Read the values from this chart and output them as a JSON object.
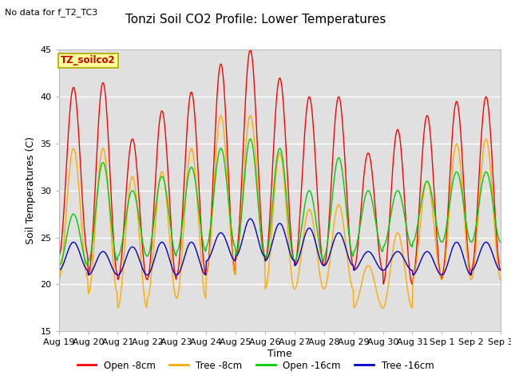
{
  "title": "Tonzi Soil CO2 Profile: Lower Temperatures",
  "subtitle": "No data for f_T2_TC3",
  "dataset_label": "TZ_soilco2",
  "ylabel": "Soil Temperatures (C)",
  "xlabel": "Time",
  "ylim": [
    15,
    45
  ],
  "yticks": [
    15,
    20,
    25,
    30,
    35,
    40,
    45
  ],
  "bg_color": "#e0e0e0",
  "legend_entries": [
    "Open -8cm",
    "Tree -8cm",
    "Open -16cm",
    "Tree -16cm"
  ],
  "line_colors": [
    "#ff0000",
    "#ffaa00",
    "#00cc00",
    "#0000cc"
  ],
  "date_labels": [
    "Aug 19",
    "Aug 20",
    "Aug 21",
    "Aug 22",
    "Aug 23",
    "Aug 24",
    "Aug 25",
    "Aug 26",
    "Aug 27",
    "Aug 28",
    "Aug 29",
    "Aug 30",
    "Aug 31",
    "Sep 1",
    "Sep 2",
    "Sep 3"
  ],
  "open8_peaks": [
    41.0,
    41.5,
    35.5,
    38.5,
    40.5,
    43.5,
    45.0,
    42.0,
    40.0,
    40.0,
    34.0,
    36.5,
    38.0,
    39.5,
    40.0
  ],
  "open8_troughs": [
    23.0,
    21.0,
    20.5,
    20.5,
    21.0,
    21.0,
    23.0,
    22.5,
    22.0,
    22.0,
    21.5,
    20.0,
    20.5,
    21.0,
    21.5
  ],
  "tree8_peaks": [
    34.5,
    34.5,
    31.5,
    32.0,
    34.5,
    38.0,
    38.0,
    34.0,
    28.0,
    28.5,
    22.0,
    25.5,
    31.0,
    35.0,
    35.5
  ],
  "tree8_troughs": [
    20.5,
    19.0,
    17.5,
    18.5,
    18.5,
    21.0,
    22.5,
    19.5,
    19.5,
    19.5,
    17.5,
    17.5,
    20.5,
    20.5,
    20.5
  ],
  "open16_peaks": [
    27.5,
    33.0,
    30.0,
    31.5,
    32.5,
    34.5,
    35.5,
    34.5,
    30.0,
    33.5,
    30.0,
    30.0,
    31.0,
    32.0,
    32.0
  ],
  "open16_troughs": [
    22.0,
    22.5,
    23.0,
    23.0,
    23.5,
    24.0,
    23.0,
    22.5,
    22.5,
    23.0,
    23.5,
    24.0,
    24.5,
    24.5,
    24.5
  ],
  "tree16_peaks": [
    24.5,
    23.5,
    24.0,
    24.5,
    24.5,
    25.5,
    27.0,
    26.5,
    26.0,
    25.5,
    23.5,
    23.5,
    23.5,
    24.5,
    24.5
  ],
  "tree16_troughs": [
    21.5,
    21.0,
    21.0,
    21.0,
    21.0,
    22.5,
    23.0,
    22.5,
    22.0,
    22.0,
    21.5,
    21.5,
    21.0,
    21.0,
    21.5
  ]
}
